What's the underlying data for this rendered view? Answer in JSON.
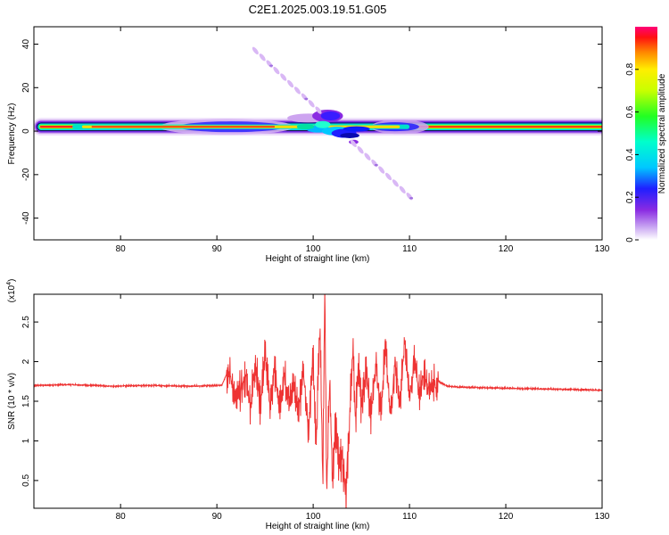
{
  "title": "C2E1.2025.003.19.51.G05",
  "chart_data": [
    {
      "type": "heatmap",
      "xlabel": "Height of straight line (km)",
      "ylabel": "Frequency (Hz)",
      "xlim": [
        71,
        130
      ],
      "ylim": [
        -50,
        48
      ],
      "xticks": [
        80,
        90,
        100,
        110,
        120,
        130
      ],
      "yticks": [
        40,
        20,
        0,
        -20,
        -40
      ],
      "colorbar": {
        "label": "Normalized spectral amplitude",
        "range": [
          0,
          1
        ],
        "ticks": [
          0.0,
          0.2,
          0.4,
          0.6,
          0.8
        ]
      },
      "features": [
        {
          "name": "main-band",
          "x_range": [
            71,
            130
          ],
          "center_freq_hz": 2,
          "amplitude": 1.0
        },
        {
          "name": "disturbance",
          "x_range": [
            98,
            105
          ],
          "center_freq_hz": 2,
          "amplitude": 0.3
        },
        {
          "name": "diagonal-streak",
          "from": [
            94,
            37
          ],
          "to": [
            110,
            -30
          ],
          "amplitude": 0.05
        }
      ]
    },
    {
      "type": "line",
      "xlabel": "Height of straight line (km)",
      "ylabel": "SNR (10 * v/v)",
      "y_multiplier": "(x10^4)",
      "xlim": [
        71,
        130
      ],
      "ylim": [
        0.15,
        2.85
      ],
      "xticks": [
        80,
        90,
        100,
        110,
        120,
        130
      ],
      "yticks": [
        0.5,
        1.0,
        1.5,
        2.0,
        2.5
      ],
      "series": [
        {
          "color": "#ee3333",
          "x": [
            71,
            75,
            79,
            83,
            87,
            90.5,
            91.2,
            91.5,
            92,
            92.5,
            93,
            93.5,
            94,
            94.5,
            95,
            95.5,
            96,
            96.5,
            97,
            97.5,
            98,
            98.5,
            99,
            99.5,
            100,
            100.3,
            100.7,
            101,
            101.2,
            101.4,
            101.7,
            102,
            102.3,
            102.7,
            103,
            103.4,
            103.8,
            104.1,
            104.4,
            104.7,
            105,
            105.5,
            106,
            106.5,
            107,
            107.5,
            108,
            108.5,
            109,
            109.5,
            110,
            110.5,
            111,
            111.5,
            112,
            113,
            114,
            115,
            118,
            122,
            126,
            130
          ],
          "y": [
            1.7,
            1.71,
            1.69,
            1.7,
            1.69,
            1.7,
            1.9,
            1.75,
            1.5,
            1.65,
            1.8,
            1.45,
            2.0,
            1.45,
            2.1,
            1.45,
            1.9,
            1.4,
            1.8,
            1.5,
            1.75,
            1.35,
            1.9,
            1.1,
            2.1,
            0.9,
            2.5,
            0.5,
            2.85,
            0.3,
            1.8,
            0.55,
            1.2,
            0.65,
            0.85,
            0.25,
            1.3,
            2.2,
            1.3,
            2.0,
            1.4,
            1.9,
            1.3,
            2.0,
            1.4,
            2.2,
            1.3,
            2.0,
            1.45,
            2.25,
            1.55,
            2.0,
            1.6,
            1.85,
            1.7,
            1.75,
            1.69,
            1.68,
            1.67,
            1.66,
            1.65,
            1.64
          ]
        }
      ]
    }
  ]
}
